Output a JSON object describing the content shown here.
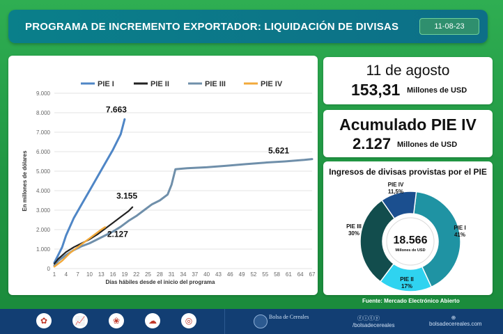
{
  "header": {
    "title": "PROGRAMA DE INCREMENTO EXPORTADOR: LIQUIDACIÓN DE DIVISAS",
    "date": "11-08-23"
  },
  "daily_card": {
    "date_label": "11 de agosto",
    "value": "153,31",
    "unit": "Millones de USD"
  },
  "cumulative_card": {
    "title": "Acumulado PIE IV",
    "value": "2.127",
    "unit": "Millones de USD"
  },
  "colors": {
    "pie1": "#4f86c6",
    "pie2": "#222222",
    "pie3": "#6f8faa",
    "pie4": "#f2a93b",
    "donut_pie1": "#1f93a3",
    "donut_pie2": "#2fd3f0",
    "donut_pie3": "#124d4d",
    "donut_pie4": "#1b4f8f"
  },
  "chart_data": [
    {
      "type": "line",
      "title": "",
      "xlabel": "Días hábiles desde el inicio del programa",
      "ylabel": "En millones de dólares",
      "ylim": [
        0,
        9000
      ],
      "xlim": [
        1,
        67
      ],
      "y_ticks": [
        "0",
        "1.000",
        "2.000",
        "3.000",
        "4.000",
        "5.000",
        "6.000",
        "7.000",
        "8.000",
        "9.000"
      ],
      "x_ticks": [
        "1",
        "4",
        "7",
        "10",
        "13",
        "16",
        "19",
        "22",
        "25",
        "28",
        "31",
        "34",
        "37",
        "40",
        "43",
        "46",
        "49",
        "52",
        "55",
        "58",
        "61",
        "64",
        "67"
      ],
      "legend": "top",
      "grid": true,
      "series": [
        {
          "name": "PIE I",
          "x": [
            1,
            2,
            3,
            4,
            6,
            8,
            10,
            12,
            14,
            16,
            18,
            19
          ],
          "y": [
            300,
            700,
            1100,
            1700,
            2600,
            3300,
            4000,
            4700,
            5400,
            6100,
            6900,
            7663
          ]
        },
        {
          "name": "PIE II",
          "x": [
            1,
            2,
            4,
            6,
            8,
            10,
            12,
            14,
            16,
            18,
            20,
            21
          ],
          "y": [
            250,
            500,
            850,
            1100,
            1300,
            1500,
            1750,
            2050,
            2350,
            2650,
            2950,
            3155
          ]
        },
        {
          "name": "PIE III",
          "x": [
            1,
            2,
            4,
            6,
            8,
            10,
            12,
            14,
            16,
            18,
            20,
            22,
            24,
            26,
            28,
            30,
            31,
            32,
            35,
            40,
            45,
            50,
            55,
            60,
            65,
            67
          ],
          "y": [
            150,
            400,
            700,
            950,
            1150,
            1300,
            1500,
            1700,
            1900,
            2150,
            2450,
            2700,
            3000,
            3300,
            3500,
            3800,
            4300,
            5100,
            5150,
            5200,
            5280,
            5360,
            5440,
            5500,
            5580,
            5621
          ]
        },
        {
          "name": "PIE IV",
          "x": [
            1,
            2,
            3,
            4,
            5,
            6,
            7,
            8,
            9,
            10,
            11,
            12,
            13,
            14
          ],
          "y": [
            100,
            250,
            400,
            600,
            800,
            950,
            1100,
            1250,
            1400,
            1550,
            1700,
            1850,
            2000,
            2127
          ]
        }
      ],
      "annotations": [
        {
          "text": "7.663",
          "series": "PIE I"
        },
        {
          "text": "3.155",
          "series": "PIE II"
        },
        {
          "text": "5.621",
          "series": "PIE III"
        },
        {
          "text": "2.127",
          "series": "PIE IV"
        }
      ]
    },
    {
      "type": "pie",
      "title": "Ingresos de divisas provistas por el PIE",
      "center_value": "18.566",
      "center_unit": "Millones de USD",
      "slices": [
        {
          "name": "PIE I",
          "label": "41%",
          "value": 41
        },
        {
          "name": "PIE II",
          "label": "17%",
          "value": 17
        },
        {
          "name": "PIE III",
          "label": "30%",
          "value": 30
        },
        {
          "name": "PIE IV",
          "label": "11,5%",
          "value": 11.5
        }
      ]
    }
  ],
  "source": "Fuente: Mercado Electrónico Abierto",
  "footer": {
    "logo_text": "Bolsa de Cereales",
    "social_handle": "/bolsadecereales",
    "website": "bolsadecereales.com",
    "icons": [
      "flower-icon",
      "chart-icon",
      "crop-icon",
      "weather-icon",
      "globe-icon"
    ]
  }
}
